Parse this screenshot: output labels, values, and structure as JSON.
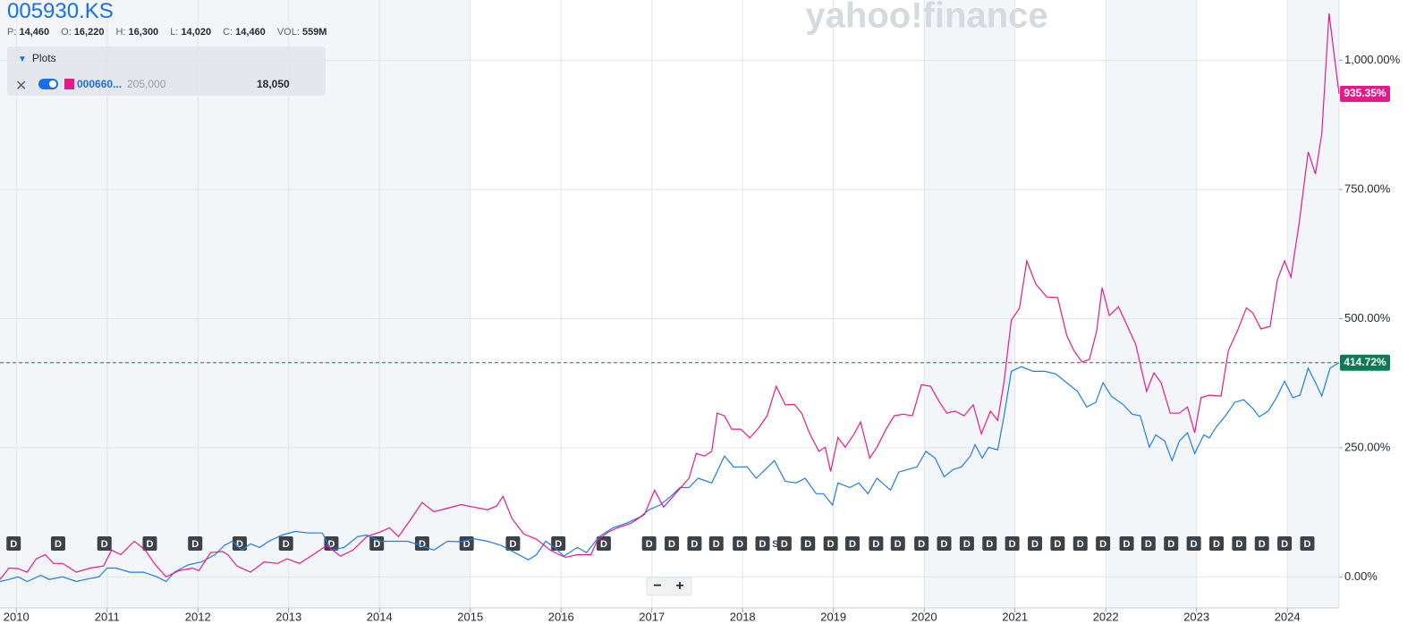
{
  "header": {
    "quote": [
      {
        "label": "P:",
        "value": "14,460"
      },
      {
        "label": "O:",
        "value": "16,220"
      },
      {
        "label": "H:",
        "value": "16,300"
      },
      {
        "label": "L:",
        "value": "14,020"
      },
      {
        "label": "C:",
        "value": "14,460"
      },
      {
        "label": "VOL:",
        "value": "559M"
      }
    ],
    "plots_panel": {
      "title": "Plots",
      "price": "205,000",
      "value": "18,050"
    },
    "watermark": "yahoo!finance",
    "zoom_controls": [
      "−",
      "+"
    ]
  },
  "chart_data": {
    "type": "line",
    "xlim": [
      2009.82,
      2024.57
    ],
    "xticks": [
      2010,
      2011,
      2012,
      2013,
      2014,
      2015,
      2016,
      2017,
      2018,
      2019,
      2020,
      2021,
      2022,
      2023,
      2024
    ],
    "ylim": [
      -60,
      1117
    ],
    "yticks": [
      {
        "value": 0,
        "label": "0.00%"
      },
      {
        "value": 250,
        "label": "250.00%"
      },
      {
        "value": 500,
        "label": "500.00%"
      },
      {
        "value": 750,
        "label": "750.00%"
      },
      {
        "value": 1000,
        "label": "1,000.00%"
      }
    ],
    "grid": true,
    "series": [
      {
        "name": "005930.KS",
        "color": "#1e7ce8",
        "last_label": "414.72%",
        "x": [
          2009.82,
          2009.92,
          2010.02,
          2010.12,
          2010.27,
          2010.36,
          2010.51,
          2010.66,
          2010.76,
          2010.91,
          2011.0,
          2011.1,
          2011.25,
          2011.4,
          2011.55,
          2011.65,
          2011.74,
          2011.89,
          2012.04,
          2012.19,
          2012.29,
          2012.38,
          2012.48,
          2012.58,
          2012.68,
          2012.78,
          2012.93,
          2013.07,
          2013.22,
          2013.37,
          2013.47,
          2013.61,
          2013.76,
          2013.86,
          2014.01,
          2014.16,
          2014.31,
          2014.45,
          2014.6,
          2014.75,
          2014.9,
          2015.04,
          2015.19,
          2015.34,
          2015.49,
          2015.64,
          2015.73,
          2015.83,
          2015.93,
          2016.03,
          2016.18,
          2016.28,
          2016.42,
          2016.57,
          2016.72,
          2016.87,
          2016.97,
          2017.09,
          2017.21,
          2017.31,
          2017.41,
          2017.51,
          2017.66,
          2017.8,
          2017.9,
          2018.05,
          2018.15,
          2018.25,
          2018.35,
          2018.47,
          2018.59,
          2018.69,
          2018.81,
          2018.89,
          2018.99,
          2019.05,
          2019.18,
          2019.28,
          2019.38,
          2019.48,
          2019.63,
          2019.72,
          2019.82,
          2019.92,
          2020.02,
          2020.12,
          2020.22,
          2020.32,
          2020.41,
          2020.51,
          2020.56,
          2020.64,
          2020.71,
          2020.81,
          2020.88,
          2020.96,
          2021.07,
          2021.2,
          2021.33,
          2021.45,
          2021.57,
          2021.69,
          2021.79,
          2021.89,
          2021.97,
          2022.06,
          2022.19,
          2022.29,
          2022.38,
          2022.48,
          2022.55,
          2022.65,
          2022.73,
          2022.81,
          2022.9,
          2022.98,
          2023.08,
          2023.14,
          2023.22,
          2023.32,
          2023.42,
          2023.52,
          2023.62,
          2023.69,
          2023.79,
          2023.88,
          2023.97,
          2024.06,
          2024.14,
          2024.23,
          2024.31,
          2024.38,
          2024.47,
          2024.57
        ],
        "values": [
          -9,
          -5,
          0,
          -9,
          3,
          -5,
          0,
          -9,
          -5,
          0,
          17,
          17,
          9,
          9,
          0,
          -9,
          9,
          23,
          29,
          43,
          61,
          69,
          52,
          64,
          57,
          69,
          81,
          88,
          85,
          85,
          52,
          57,
          78,
          81,
          69,
          69,
          69,
          61,
          52,
          69,
          68,
          74,
          69,
          61,
          47,
          33,
          43,
          69,
          57,
          40,
          57,
          47,
          78,
          95,
          104,
          116,
          130,
          139,
          156,
          173,
          173,
          191,
          182,
          234,
          213,
          213,
          191,
          208,
          225,
          185,
          182,
          191,
          161,
          161,
          139,
          182,
          173,
          182,
          161,
          191,
          168,
          203,
          208,
          213,
          243,
          230,
          194,
          208,
          213,
          234,
          256,
          230,
          251,
          246,
          312,
          398,
          407,
          398,
          398,
          393,
          376,
          359,
          329,
          338,
          376,
          350,
          334,
          315,
          312,
          251,
          275,
          263,
          225,
          263,
          279,
          239,
          275,
          269,
          291,
          312,
          338,
          343,
          326,
          310,
          321,
          347,
          379,
          347,
          352,
          404,
          376,
          350,
          404,
          414.72
        ]
      },
      {
        "name": "000660...",
        "color": "#e6198a",
        "last_label": "935.35%",
        "x": [
          2009.82,
          2009.92,
          2010.02,
          2010.12,
          2010.22,
          2010.32,
          2010.41,
          2010.51,
          2010.66,
          2010.81,
          2010.96,
          2011.05,
          2011.15,
          2011.3,
          2011.42,
          2011.52,
          2011.65,
          2011.79,
          2011.94,
          2012.01,
          2012.14,
          2012.27,
          2012.33,
          2012.43,
          2012.58,
          2012.73,
          2012.88,
          2012.98,
          2013.12,
          2013.27,
          2013.42,
          2013.57,
          2013.71,
          2013.86,
          2014.01,
          2014.11,
          2014.21,
          2014.35,
          2014.47,
          2014.6,
          2014.75,
          2014.9,
          2015.04,
          2015.19,
          2015.29,
          2015.36,
          2015.46,
          2015.59,
          2015.73,
          2015.88,
          2015.98,
          2016.05,
          2016.18,
          2016.33,
          2016.4,
          2016.52,
          2016.62,
          2016.77,
          2016.92,
          2017.03,
          2017.13,
          2017.26,
          2017.41,
          2017.49,
          2017.58,
          2017.66,
          2017.72,
          2017.8,
          2017.88,
          2017.98,
          2018.08,
          2018.18,
          2018.27,
          2018.37,
          2018.47,
          2018.57,
          2018.65,
          2018.74,
          2018.84,
          2018.91,
          2018.97,
          2019.05,
          2019.13,
          2019.23,
          2019.3,
          2019.4,
          2019.48,
          2019.58,
          2019.67,
          2019.77,
          2019.87,
          2019.97,
          2020.07,
          2020.17,
          2020.25,
          2020.34,
          2020.44,
          2020.54,
          2020.63,
          2020.73,
          2020.81,
          2020.88,
          2020.96,
          2021.05,
          2021.13,
          2021.23,
          2021.35,
          2021.47,
          2021.57,
          2021.65,
          2021.74,
          2021.82,
          2021.9,
          2021.96,
          2022.04,
          2022.14,
          2022.24,
          2022.33,
          2022.45,
          2022.53,
          2022.61,
          2022.71,
          2022.81,
          2022.9,
          2022.98,
          2023.05,
          2023.14,
          2023.27,
          2023.35,
          2023.45,
          2023.55,
          2023.62,
          2023.71,
          2023.81,
          2023.89,
          2023.97,
          2024.04,
          2024.13,
          2024.23,
          2024.31,
          2024.38,
          2024.46,
          2024.57
        ],
        "values": [
          -5,
          17,
          16,
          9,
          35,
          43,
          26,
          26,
          9,
          17,
          21,
          52,
          43,
          69,
          52,
          26,
          0,
          12,
          17,
          12,
          47,
          49,
          43,
          21,
          9,
          29,
          26,
          35,
          26,
          43,
          61,
          40,
          52,
          78,
          87,
          95,
          78,
          113,
          144,
          126,
          133,
          140,
          135,
          130,
          137,
          156,
          113,
          83,
          73,
          52,
          43,
          38,
          43,
          43,
          71,
          87,
          95,
          104,
          121,
          168,
          135,
          161,
          191,
          239,
          234,
          243,
          317,
          312,
          286,
          286,
          269,
          289,
          312,
          369,
          333,
          334,
          317,
          277,
          243,
          251,
          204,
          270,
          251,
          277,
          300,
          230,
          251,
          286,
          312,
          315,
          312,
          372,
          369,
          338,
          317,
          321,
          312,
          333,
          277,
          321,
          303,
          378,
          497,
          520,
          612,
          567,
          542,
          541,
          468,
          438,
          416,
          421,
          476,
          560,
          506,
          523,
          485,
          450,
          359,
          395,
          376,
          317,
          317,
          329,
          279,
          347,
          352,
          350,
          438,
          476,
          521,
          511,
          480,
          485,
          575,
          612,
          580,
          684,
          823,
          780,
          858,
          1091,
          935.35
        ]
      }
    ],
    "events": {
      "label": "D",
      "x": [
        2009.97,
        2010.46,
        2010.97,
        2011.47,
        2011.97,
        2012.46,
        2012.97,
        2013.47,
        2013.97,
        2014.47,
        2014.96,
        2015.47,
        2015.97,
        2016.47,
        2016.97,
        2017.22,
        2017.47,
        2017.71,
        2017.97,
        2018.22,
        2018.46,
        2018.72,
        2018.97,
        2019.21,
        2019.47,
        2019.71,
        2019.97,
        2020.22,
        2020.47,
        2020.72,
        2020.97,
        2021.22,
        2021.47,
        2021.72,
        2021.97,
        2022.23,
        2022.47,
        2022.72,
        2022.97,
        2023.22,
        2023.47,
        2023.72,
        2023.97,
        2024.22
      ]
    },
    "split_event": {
      "label": "S",
      "x": 2018.36
    }
  }
}
